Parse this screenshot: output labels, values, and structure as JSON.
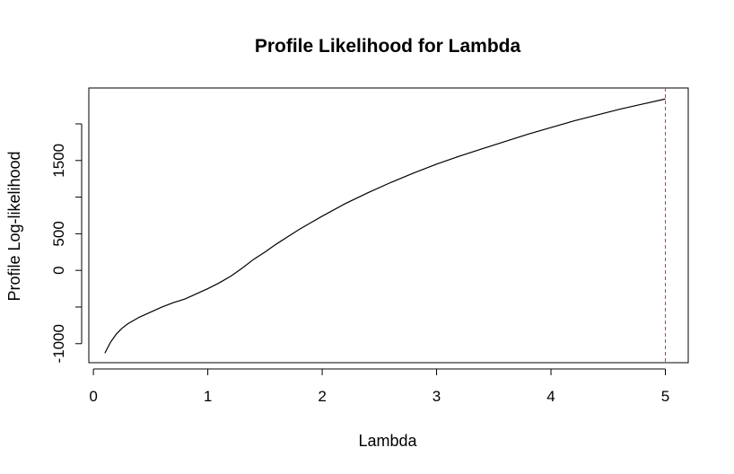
{
  "chart_data": {
    "type": "line",
    "title": "Profile Likelihood for Lambda",
    "xlabel": "Lambda",
    "ylabel": "Profile Log-likelihood",
    "xlim": [
      -0.04,
      5.2
    ],
    "ylim": [
      -1260,
      2490
    ],
    "x_ticks": [
      0,
      1,
      2,
      3,
      4,
      5
    ],
    "x_tick_labels": [
      "0",
      "1",
      "2",
      "3",
      "4",
      "5"
    ],
    "y_ticks": [
      -1000,
      -500,
      0,
      500,
      1000,
      1500,
      2000
    ],
    "y_tick_labels": [
      "-1000",
      "",
      "0",
      "500",
      "",
      "1500",
      ""
    ],
    "grid": false,
    "series": [
      {
        "x": [
          0.1,
          0.15,
          0.2,
          0.25,
          0.3,
          0.4,
          0.5,
          0.6,
          0.7,
          0.8,
          0.9,
          1.0,
          1.1,
          1.2,
          1.3,
          1.4,
          1.5,
          1.6,
          1.7,
          1.8,
          1.9,
          2.0,
          2.2,
          2.4,
          2.6,
          2.8,
          3.0,
          3.2,
          3.4,
          3.6,
          3.8,
          4.0,
          4.2,
          4.4,
          4.6,
          4.8,
          5.0
        ],
        "y": [
          -1130,
          -980,
          -870,
          -790,
          -730,
          -640,
          -570,
          -500,
          -440,
          -390,
          -320,
          -250,
          -170,
          -80,
          30,
          150,
          250,
          360,
          460,
          560,
          650,
          740,
          910,
          1060,
          1200,
          1330,
          1450,
          1560,
          1660,
          1760,
          1860,
          1950,
          2040,
          2120,
          2200,
          2270,
          2340
        ]
      }
    ],
    "reference_line": {
      "x": 5.0,
      "color": "#e3342f",
      "style": "dashed"
    }
  }
}
